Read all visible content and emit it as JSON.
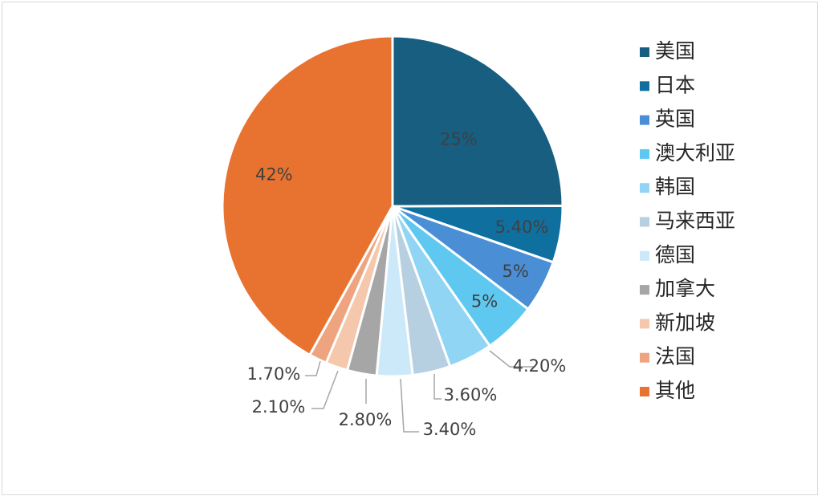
{
  "chart_data": {
    "type": "pie",
    "title": "",
    "categories": [
      "美国",
      "日本",
      "英国",
      "澳大利亚",
      "韩国",
      "马来西亚",
      "德国",
      "加拿大",
      "新加坡",
      "法国",
      "其他"
    ],
    "values": [
      25,
      5.4,
      5,
      5,
      4.2,
      3.6,
      3.4,
      2.8,
      2.1,
      1.7,
      42
    ],
    "labels": [
      "25%",
      "5.40%",
      "5%",
      "5%",
      "4.20%",
      "3.60%",
      "3.40%",
      "2.80%",
      "2.10%",
      "1.70%",
      "42%"
    ],
    "colors": [
      "#175e80",
      "#0f70a0",
      "#4a8fd6",
      "#5ec8f0",
      "#91d5f5",
      "#b6cfe1",
      "#cbe9f8",
      "#a6a6a6",
      "#f5c7ac",
      "#eea47f",
      "#e87331"
    ],
    "legend_position": "right",
    "start_angle": "12 o'clock, clockwise"
  }
}
